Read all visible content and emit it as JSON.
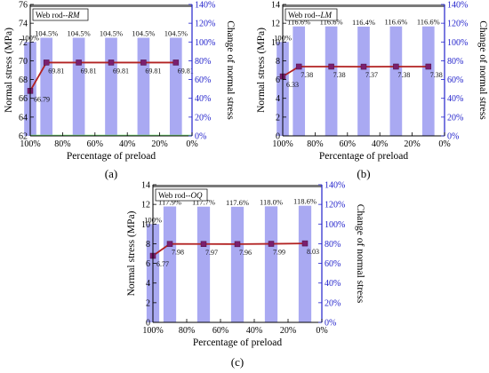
{
  "chart_data": [
    {
      "panel_label": "(a)",
      "type": "bar+line",
      "legend_text": "Web rod--",
      "legend_var": "RM",
      "xlabel": "Percentage of preload",
      "ylabel": "Normal stress (MPa)",
      "ylabel_right": "Change of normal stress",
      "x_ticks": [
        "100%",
        "80%",
        "60%",
        "40%",
        "20%",
        "0%"
      ],
      "y_ticks": [
        "62",
        "64",
        "66",
        "68",
        "70",
        "72",
        "74",
        "76"
      ],
      "ylim": [
        62,
        76
      ],
      "y2_ticks": [
        "0%",
        "20%",
        "40%",
        "60%",
        "80%",
        "100%",
        "120%",
        "140%"
      ],
      "y2lim": [
        0,
        140
      ],
      "x": [
        100,
        90,
        70,
        50,
        30,
        10
      ],
      "bar_values": [
        100,
        104.5,
        104.5,
        104.5,
        104.5,
        104.5
      ],
      "bar_labels": [
        "100%",
        "104.5%",
        "104.5%",
        "104.5%",
        "104.5%",
        "104.5%"
      ],
      "line_values": [
        66.79,
        69.81,
        69.81,
        69.81,
        69.81,
        69.81
      ],
      "line_labels": [
        "66.79",
        "69.81",
        "69.81",
        "69.81",
        "69.81",
        "69.81"
      ]
    },
    {
      "panel_label": "(b)",
      "type": "bar+line",
      "legend_text": "Web rod--",
      "legend_var": "LM",
      "xlabel": "Percentage of preload",
      "ylabel": "Normal stress (MPa)",
      "ylabel_right": "Change of normal stress",
      "x_ticks": [
        "100%",
        "80%",
        "60%",
        "40%",
        "20%",
        "0%"
      ],
      "y_ticks": [
        "0",
        "2",
        "4",
        "6",
        "8",
        "10",
        "12",
        "14"
      ],
      "ylim": [
        0,
        14
      ],
      "y2_ticks": [
        "0%",
        "20%",
        "40%",
        "60%",
        "80%",
        "100%",
        "120%",
        "140%"
      ],
      "y2lim": [
        0,
        140
      ],
      "x": [
        100,
        90,
        70,
        50,
        30,
        10
      ],
      "bar_values": [
        100,
        116.6,
        116.6,
        116.4,
        116.6,
        116.6
      ],
      "bar_labels": [
        "100%",
        "116.6%",
        "116.6%",
        "116.4%",
        "116.6%",
        "116.6%"
      ],
      "line_values": [
        6.33,
        7.38,
        7.38,
        7.37,
        7.38,
        7.38
      ],
      "line_labels": [
        "6.33",
        "7.38",
        "7.38",
        "7.37",
        "7.38",
        "7.38"
      ]
    },
    {
      "panel_label": "(c)",
      "type": "bar+line",
      "legend_text": "Web rod--",
      "legend_var": "OQ",
      "xlabel": "Percentage of preload",
      "ylabel": "Normal stress (MPa)",
      "ylabel_right": "Change of normal stress",
      "x_ticks": [
        "100%",
        "80%",
        "60%",
        "40%",
        "20%",
        "0%"
      ],
      "y_ticks": [
        "0",
        "2",
        "4",
        "6",
        "8",
        "10",
        "12",
        "14"
      ],
      "ylim": [
        0,
        14
      ],
      "y2_ticks": [
        "0%",
        "20%",
        "40%",
        "60%",
        "80%",
        "100%",
        "120%",
        "140%"
      ],
      "y2lim": [
        0,
        140
      ],
      "x": [
        100,
        90,
        70,
        50,
        30,
        10
      ],
      "bar_values": [
        100,
        117.9,
        117.7,
        117.6,
        118.0,
        118.6
      ],
      "bar_labels": [
        "100%",
        "117.9%",
        "117.7%",
        "117.6%",
        "118.0%",
        "118.6%"
      ],
      "line_values": [
        6.77,
        7.98,
        7.97,
        7.96,
        7.99,
        8.03
      ],
      "line_labels": [
        "6.77",
        "7.98",
        "7.97",
        "7.96",
        "7.99",
        "8.03"
      ]
    }
  ],
  "colors": {
    "bar": "#a9a9f2",
    "line": "#b22222",
    "marker": "#7b1f6e",
    "right_axis": "#2323cc",
    "top_band": "#7a7a7a",
    "baseline": "#7ee87e"
  }
}
